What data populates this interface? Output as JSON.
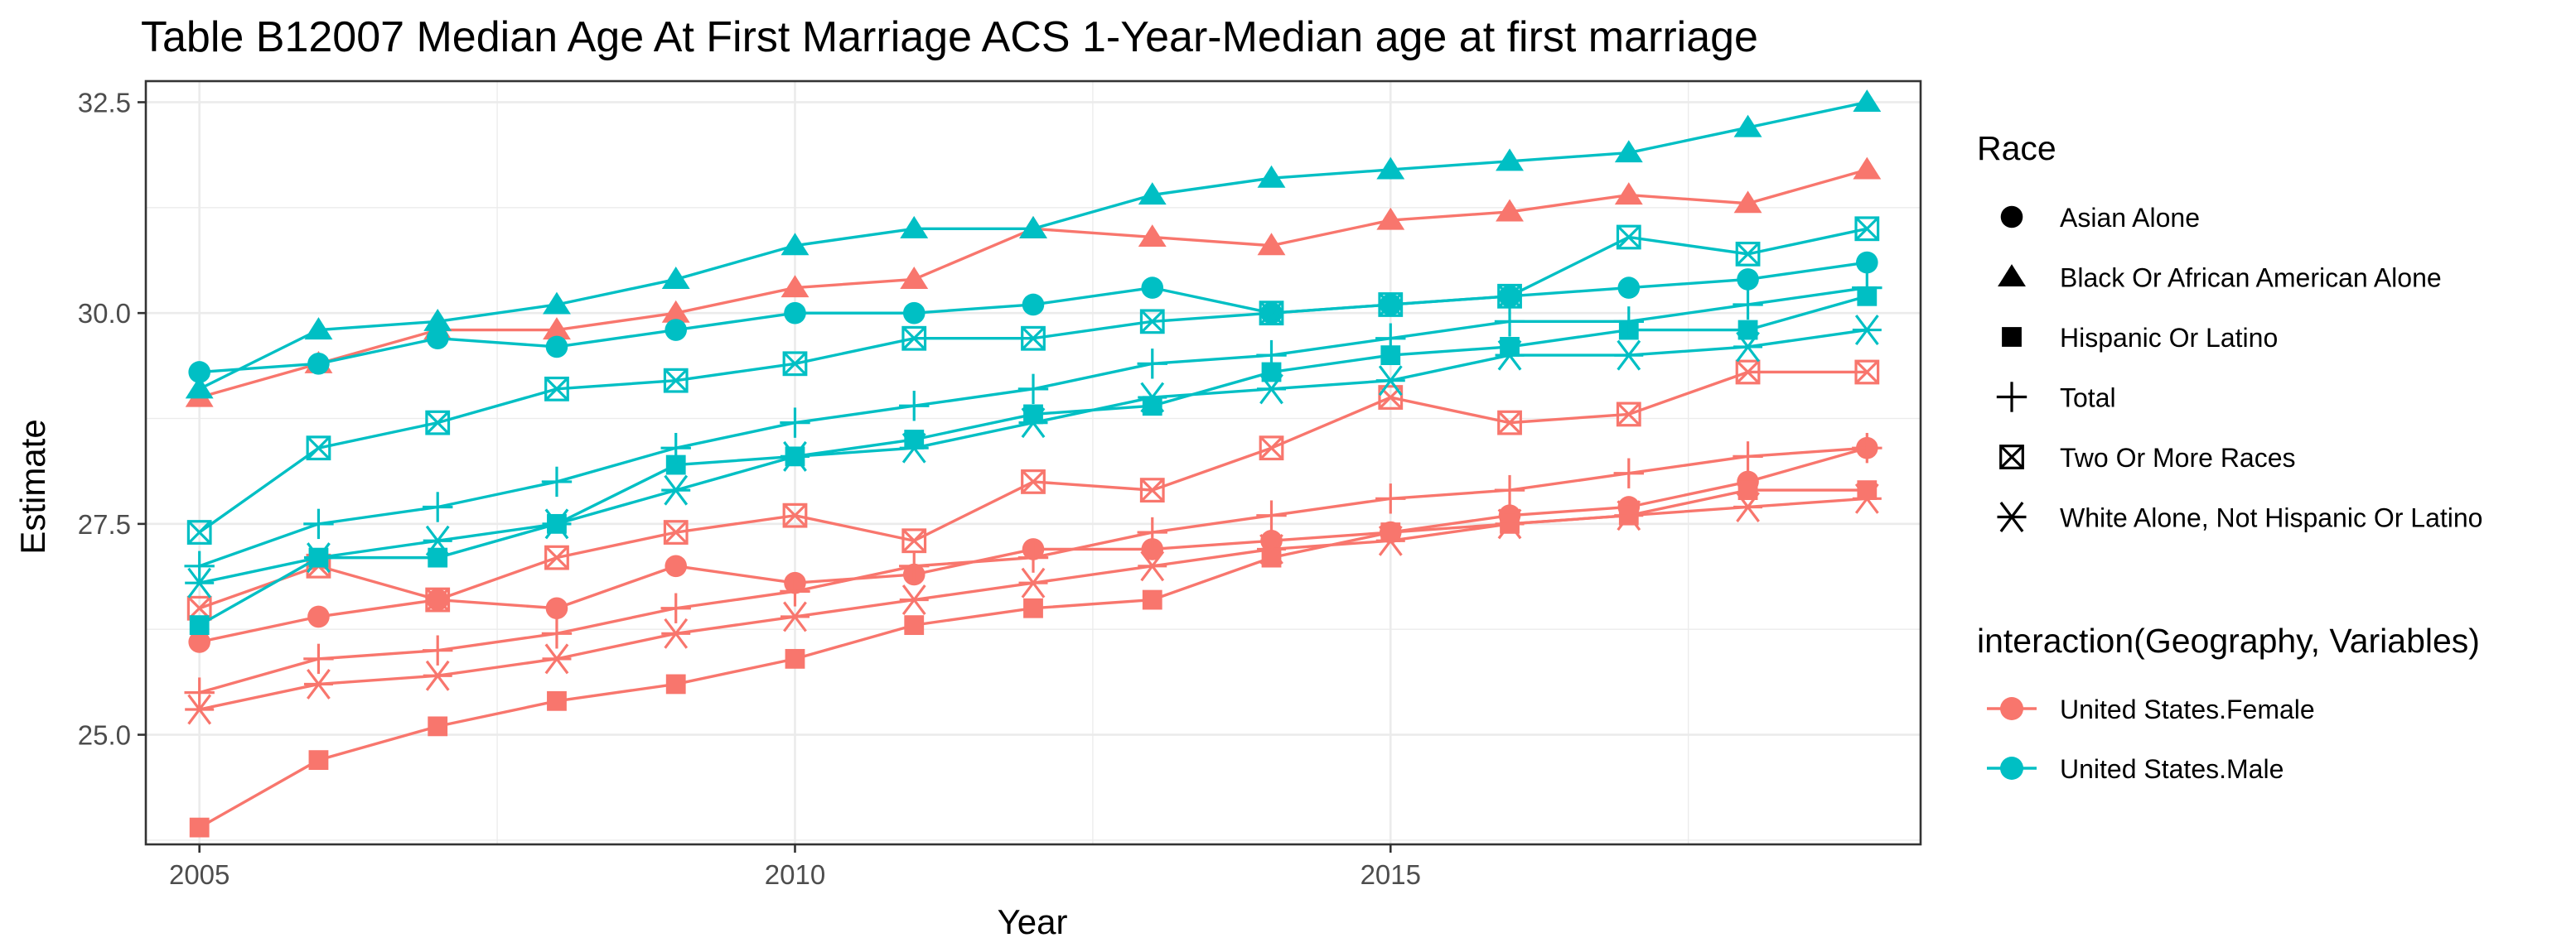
{
  "chart_data": {
    "type": "line",
    "title": "Table B12007 Median Age At First Marriage ACS 1-Year-Median age at first marriage",
    "xlabel": "Year",
    "ylabel": "Estimate",
    "xlim": [
      2004.55,
      2019.45
    ],
    "ylim": [
      23.7,
      32.75
    ],
    "x_ticks": [
      2005,
      2010,
      2015
    ],
    "y_ticks": [
      25.0,
      27.5,
      30.0,
      32.5
    ],
    "y_tick_labels": [
      "25.0",
      "27.5",
      "30.0",
      "32.5"
    ],
    "x_tick_labels": [
      "2005",
      "2010",
      "2015"
    ],
    "grid": true,
    "legend_position": "right",
    "x": [
      2005,
      2006,
      2007,
      2008,
      2009,
      2010,
      2011,
      2012,
      2013,
      2014,
      2015,
      2016,
      2017,
      2018,
      2019
    ],
    "shape_legend": {
      "title": "Race",
      "items": [
        {
          "label": "Asian Alone",
          "shape": "circle"
        },
        {
          "label": "Black Or African American Alone",
          "shape": "triangle"
        },
        {
          "label": "Hispanic Or Latino",
          "shape": "square"
        },
        {
          "label": "Total",
          "shape": "plus"
        },
        {
          "label": "Two Or More Races",
          "shape": "boxcross"
        },
        {
          "label": "White Alone, Not Hispanic Or Latino",
          "shape": "asterisk"
        }
      ]
    },
    "color_legend": {
      "title": "interaction(Geography, Variables)",
      "items": [
        {
          "label": "United States.Female",
          "color": "#F8766D"
        },
        {
          "label": "United States.Male",
          "color": "#00BFC4"
        }
      ]
    },
    "series": [
      {
        "group": "United States.Female",
        "race": "Asian Alone",
        "shape": "circle",
        "color": "#F8766D",
        "values": [
          26.1,
          26.4,
          26.6,
          26.5,
          27.0,
          26.8,
          26.9,
          27.2,
          27.2,
          27.3,
          27.4,
          27.6,
          27.7,
          28.0,
          28.4
        ]
      },
      {
        "group": "United States.Female",
        "race": "Black Or African American Alone",
        "shape": "triangle",
        "color": "#F8766D",
        "values": [
          29.0,
          29.4,
          29.8,
          29.8,
          30.0,
          30.3,
          30.4,
          31.0,
          30.9,
          30.8,
          31.1,
          31.2,
          31.4,
          31.3,
          31.7
        ]
      },
      {
        "group": "United States.Female",
        "race": "Hispanic Or Latino",
        "shape": "square",
        "color": "#F8766D",
        "values": [
          23.9,
          24.7,
          25.1,
          25.4,
          25.6,
          25.9,
          26.3,
          26.5,
          26.6,
          27.1,
          27.4,
          27.5,
          27.6,
          27.9,
          27.9
        ]
      },
      {
        "group": "United States.Female",
        "race": "Total",
        "shape": "plus",
        "color": "#F8766D",
        "values": [
          25.5,
          25.9,
          26.0,
          26.2,
          26.5,
          26.7,
          27.0,
          27.1,
          27.4,
          27.6,
          27.8,
          27.9,
          28.1,
          28.3,
          28.4
        ]
      },
      {
        "group": "United States.Female",
        "race": "Two Or More Races",
        "shape": "boxcross",
        "color": "#F8766D",
        "values": [
          26.5,
          27.0,
          26.6,
          27.1,
          27.4,
          27.6,
          27.3,
          28.0,
          27.9,
          28.4,
          29.0,
          28.7,
          28.8,
          29.3,
          29.3
        ]
      },
      {
        "group": "United States.Female",
        "race": "White Alone, Not Hispanic Or Latino",
        "shape": "asterisk",
        "color": "#F8766D",
        "values": [
          25.3,
          25.6,
          25.7,
          25.9,
          26.2,
          26.4,
          26.6,
          26.8,
          27.0,
          27.2,
          27.3,
          27.5,
          27.6,
          27.7,
          27.8
        ]
      },
      {
        "group": "United States.Male",
        "race": "Asian Alone",
        "shape": "circle",
        "color": "#00BFC4",
        "values": [
          29.3,
          29.4,
          29.7,
          29.6,
          29.8,
          30.0,
          30.0,
          30.1,
          30.3,
          30.0,
          30.1,
          30.2,
          30.3,
          30.4,
          30.6
        ]
      },
      {
        "group": "United States.Male",
        "race": "Black Or African American Alone",
        "shape": "triangle",
        "color": "#00BFC4",
        "values": [
          29.1,
          29.8,
          29.9,
          30.1,
          30.4,
          30.8,
          31.0,
          31.0,
          31.4,
          31.6,
          31.7,
          31.8,
          31.9,
          32.2,
          32.5
        ]
      },
      {
        "group": "United States.Male",
        "race": "Hispanic Or Latino",
        "shape": "square",
        "color": "#00BFC4",
        "values": [
          26.3,
          27.1,
          27.1,
          27.5,
          28.2,
          28.3,
          28.5,
          28.8,
          28.9,
          29.3,
          29.5,
          29.6,
          29.8,
          29.8,
          30.2
        ]
      },
      {
        "group": "United States.Male",
        "race": "Total",
        "shape": "plus",
        "color": "#00BFC4",
        "values": [
          27.0,
          27.5,
          27.7,
          28.0,
          28.4,
          28.7,
          28.9,
          29.1,
          29.4,
          29.5,
          29.7,
          29.9,
          29.9,
          30.1,
          30.3
        ]
      },
      {
        "group": "United States.Male",
        "race": "Two Or More Races",
        "shape": "boxcross",
        "color": "#00BFC4",
        "values": [
          27.4,
          28.4,
          28.7,
          29.1,
          29.2,
          29.4,
          29.7,
          29.7,
          29.9,
          30.0,
          30.1,
          30.2,
          30.9,
          30.7,
          31.0
        ]
      },
      {
        "group": "United States.Male",
        "race": "White Alone, Not Hispanic Or Latino",
        "shape": "asterisk",
        "color": "#00BFC4",
        "values": [
          26.8,
          27.1,
          27.3,
          27.5,
          27.9,
          28.3,
          28.4,
          28.7,
          29.0,
          29.1,
          29.2,
          29.5,
          29.5,
          29.6,
          29.8
        ]
      }
    ]
  }
}
